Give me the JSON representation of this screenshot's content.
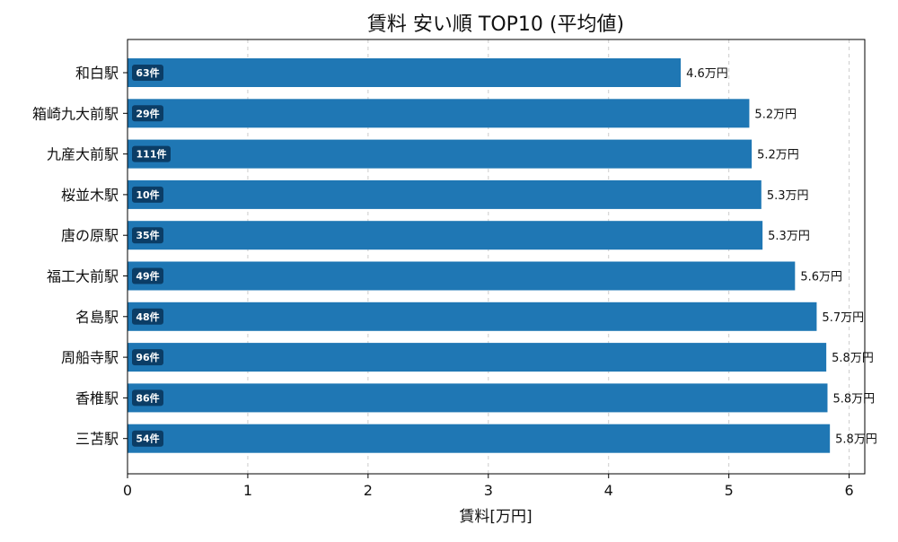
{
  "chart_data": {
    "type": "bar",
    "orientation": "horizontal",
    "title": "賃料 安い順 TOP10 (平均値)",
    "xlabel": "賃料[万円]",
    "ylabel": "",
    "xlim": [
      0,
      6.13
    ],
    "xticks": [
      0,
      1,
      2,
      3,
      4,
      5,
      6
    ],
    "grid": "x-dashed",
    "bar_color": "#1f77b4",
    "badge_color": "#0b3d66",
    "categories": [
      "和白駅",
      "箱崎九大前駅",
      "九産大前駅",
      "桜並木駅",
      "唐の原駅",
      "福工大前駅",
      "名島駅",
      "周船寺駅",
      "香椎駅",
      "三苫駅"
    ],
    "values": [
      4.6,
      5.17,
      5.19,
      5.27,
      5.28,
      5.55,
      5.73,
      5.81,
      5.82,
      5.84
    ],
    "value_labels": [
      "4.6万円",
      "5.2万円",
      "5.2万円",
      "5.3万円",
      "5.3万円",
      "5.6万円",
      "5.7万円",
      "5.8万円",
      "5.8万円",
      "5.8万円"
    ],
    "counts": [
      "63件",
      "29件",
      "111件",
      "10件",
      "35件",
      "49件",
      "48件",
      "96件",
      "86件",
      "54件"
    ]
  }
}
